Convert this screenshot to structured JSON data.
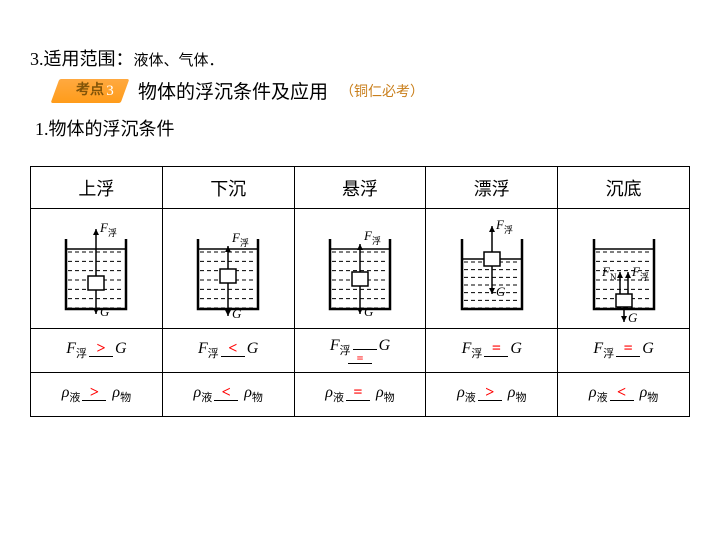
{
  "line1_num": "3.",
  "line1_label": "适用范围：",
  "line1_content": "液体、气体．",
  "badge_label": "考点",
  "badge_num": "3",
  "section_title": "物体的浮沉条件及应用",
  "section_note": "（铜仁必考）",
  "line3": "1.物体的浮沉条件",
  "headers": [
    "上浮",
    "下沉",
    "悬浮",
    "漂浮",
    "沉底"
  ],
  "F_label": "F",
  "F_sub": "浮",
  "G_label": "G",
  "rho_label": "ρ",
  "rho_liq": "液",
  "rho_obj": "物",
  "F_ops": [
    ">",
    "<",
    "",
    "=",
    "="
  ],
  "F_eq_below": "=",
  "rho_ops": [
    ">",
    "<",
    "=",
    ">",
    "<"
  ],
  "diagrams": {
    "stroke": "#000",
    "water_lines": 7,
    "states": [
      "rise",
      "sink",
      "suspend",
      "float",
      "bottom"
    ]
  }
}
